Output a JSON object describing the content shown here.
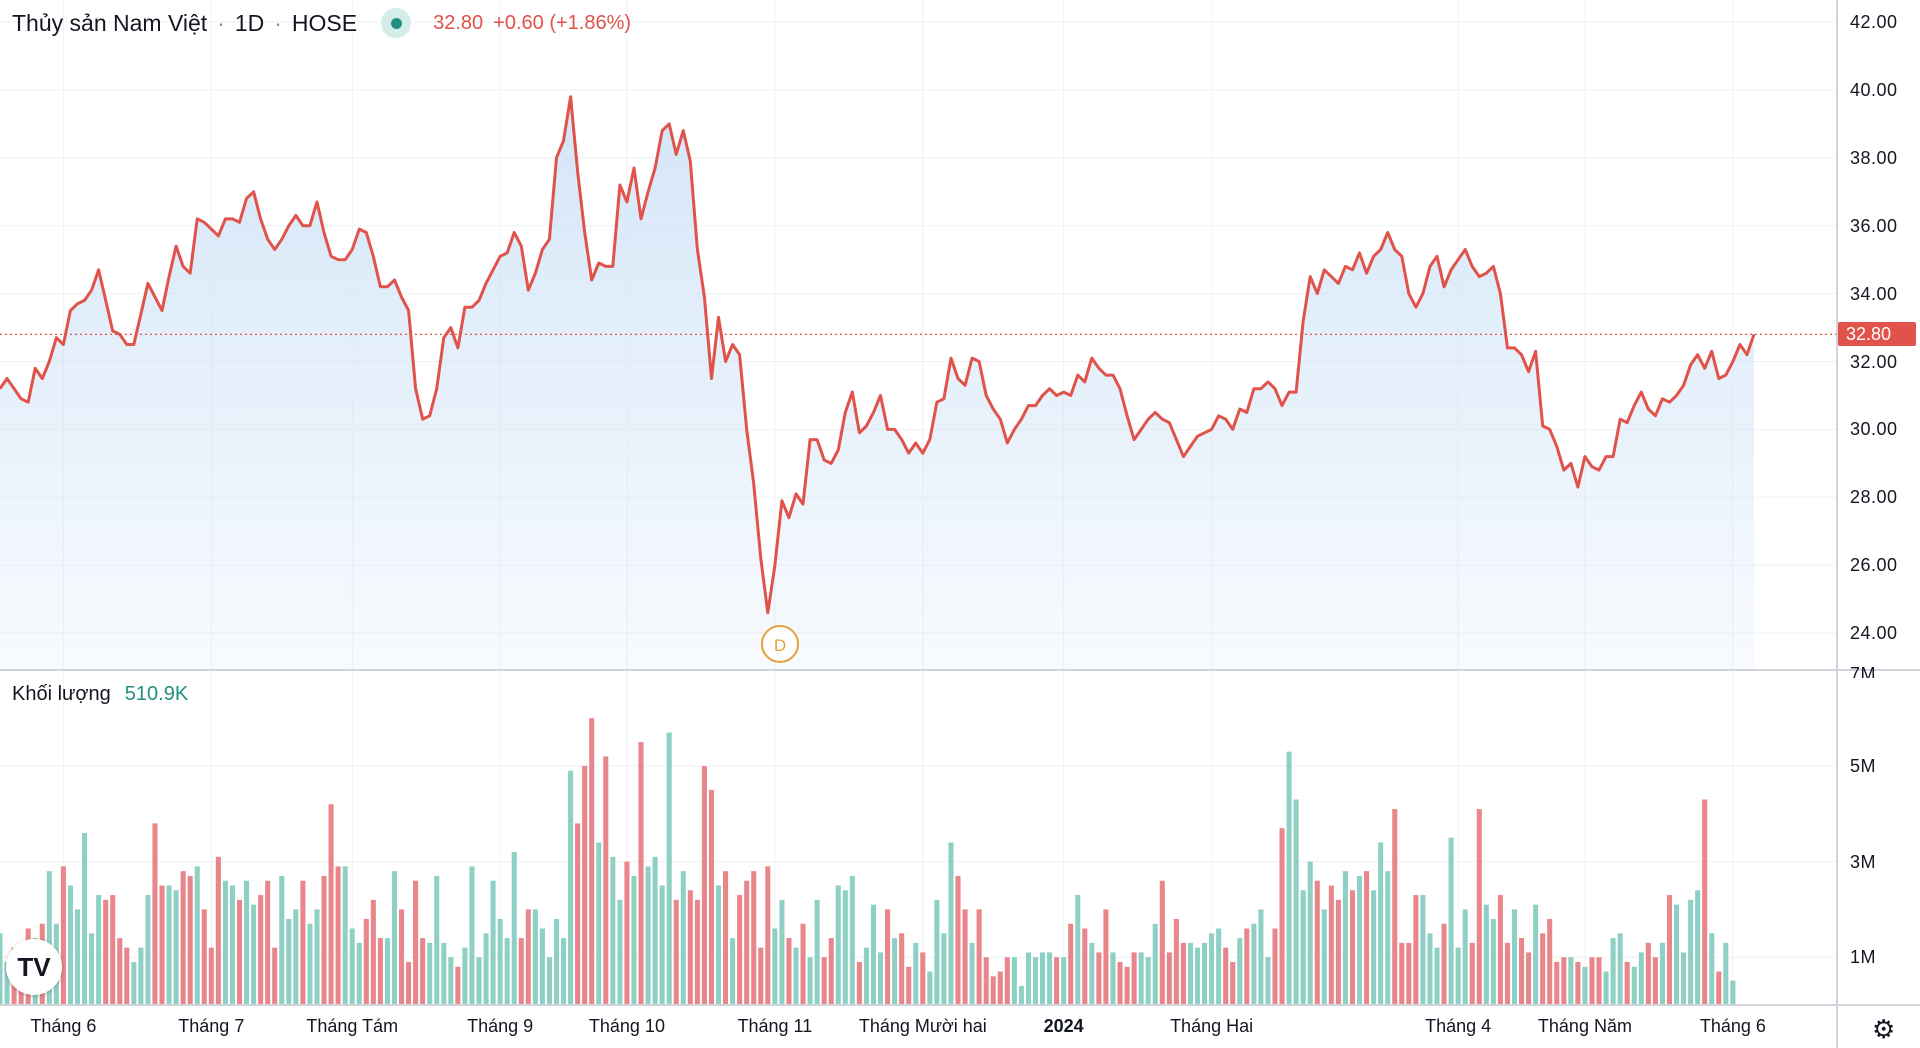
{
  "header": {
    "symbol_name": "Thủy sản Nam Việt",
    "interval": "1D",
    "exchange": "HOSE",
    "price": "32.80",
    "change": "+0.60 (+1.86%)",
    "sep": "·"
  },
  "volume_legend": {
    "label": "Khối lượng",
    "value": "510.9K"
  },
  "last_price_badge": "32.80",
  "event_marker": "D",
  "logo_text": "TV",
  "colors": {
    "line": "#e0524a",
    "up_volume": "#8fd0c4",
    "down_volume": "#e8868b",
    "area": "#cfe3f7"
  },
  "chart_data": {
    "type": "line",
    "title": "Thủy sản Nam Việt · 1D · HOSE",
    "ylim": [
      23,
      42.2
    ],
    "y_ticks": [
      "42.00",
      "40.00",
      "38.00",
      "36.00",
      "34.00",
      "32.00",
      "30.00",
      "28.00",
      "26.00",
      "24.00"
    ],
    "y_tick_values": [
      42,
      40,
      38,
      36,
      34,
      32,
      30,
      28,
      26,
      24
    ],
    "volume_ticks": [
      "7M",
      "5M",
      "3M",
      "1M"
    ],
    "volume_tick_values": [
      7,
      5,
      3,
      1
    ],
    "x_labels": [
      {
        "label": "Tháng 6",
        "bar": 9
      },
      {
        "label": "Tháng 7",
        "bar": 30
      },
      {
        "label": "Tháng Tám",
        "bar": 50
      },
      {
        "label": "Tháng 9",
        "bar": 71
      },
      {
        "label": "Tháng 10",
        "bar": 89
      },
      {
        "label": "Tháng 11",
        "bar": 110
      },
      {
        "label": "Tháng Mười hai",
        "bar": 131
      },
      {
        "label": "2024",
        "bar": 151,
        "bold": true
      },
      {
        "label": "Tháng Hai",
        "bar": 172
      },
      {
        "label": "Tháng 4",
        "bar": 207
      },
      {
        "label": "Tháng Năm",
        "bar": 225
      },
      {
        "label": "Tháng 6",
        "bar": 246
      }
    ],
    "close": [
      31.2,
      31.5,
      31.2,
      30.9,
      30.8,
      31.8,
      31.5,
      32.0,
      32.7,
      32.5,
      33.5,
      33.7,
      33.8,
      34.1,
      34.7,
      33.8,
      32.9,
      32.8,
      32.5,
      32.5,
      33.4,
      34.3,
      33.9,
      33.5,
      34.5,
      35.4,
      34.8,
      34.6,
      36.2,
      36.1,
      35.9,
      35.7,
      36.2,
      36.2,
      36.1,
      36.8,
      37.0,
      36.2,
      35.6,
      35.3,
      35.6,
      36.0,
      36.3,
      36.0,
      36.0,
      36.7,
      35.8,
      35.1,
      35.0,
      35.0,
      35.3,
      35.9,
      35.8,
      35.1,
      34.2,
      34.2,
      34.4,
      33.9,
      33.5,
      31.2,
      30.3,
      30.4,
      31.2,
      32.7,
      33.0,
      32.4,
      33.6,
      33.6,
      33.8,
      34.3,
      34.7,
      35.1,
      35.2,
      35.8,
      35.4,
      34.1,
      34.6,
      35.3,
      35.6,
      38.0,
      38.5,
      39.8,
      37.6,
      35.8,
      34.4,
      34.9,
      34.8,
      34.8,
      37.2,
      36.7,
      37.7,
      36.2,
      37.0,
      37.7,
      38.8,
      39.0,
      38.1,
      38.8,
      37.9,
      35.3,
      33.9,
      31.5,
      33.3,
      32.0,
      32.5,
      32.2,
      30.0,
      28.4,
      26.2,
      24.6,
      26.0,
      27.9,
      27.4,
      28.1,
      27.8,
      29.7,
      29.7,
      29.1,
      29.0,
      29.4,
      30.5,
      31.1,
      29.9,
      30.1,
      30.5,
      31.0,
      30.0,
      30.0,
      29.7,
      29.3,
      29.6,
      29.3,
      29.7,
      30.8,
      30.9,
      32.1,
      31.5,
      31.3,
      32.1,
      32.0,
      31.0,
      30.6,
      30.3,
      29.6,
      30.0,
      30.3,
      30.7,
      30.7,
      31.0,
      31.2,
      31.0,
      31.1,
      31.0,
      31.6,
      31.4,
      32.1,
      31.8,
      31.6,
      31.6,
      31.2,
      30.4,
      29.7,
      30.0,
      30.3,
      30.5,
      30.3,
      30.2,
      29.7,
      29.2,
      29.5,
      29.8,
      29.9,
      30.0,
      30.4,
      30.3,
      30.0,
      30.6,
      30.5,
      31.2,
      31.2,
      31.4,
      31.2,
      30.7,
      31.1,
      31.1,
      33.2,
      34.5,
      34.0,
      34.7,
      34.5,
      34.3,
      34.8,
      34.7,
      35.2,
      34.6,
      35.1,
      35.3,
      35.8,
      35.3,
      35.1,
      34.0,
      33.6,
      34.0,
      34.8,
      35.1,
      34.2,
      34.7,
      35.0,
      35.3,
      34.8,
      34.5,
      34.6,
      34.8,
      34.0,
      32.4,
      32.4,
      32.2,
      31.7,
      32.3,
      30.1,
      30.0,
      29.5,
      28.8,
      29.0,
      28.3,
      29.2,
      28.9,
      28.8,
      29.2,
      29.2,
      30.3,
      30.2,
      30.7,
      31.1,
      30.6,
      30.4,
      30.9,
      30.8,
      31.0,
      31.3,
      31.9,
      32.2,
      31.8,
      32.3,
      31.5,
      31.6,
      32.0,
      32.5,
      32.2,
      32.8
    ],
    "volume_millions": [
      1.5,
      0.9,
      1.2,
      0.8,
      1.6,
      1.4,
      1.7,
      2.8,
      1.7,
      2.9,
      2.5,
      2.0,
      3.6,
      1.5,
      2.3,
      2.2,
      2.3,
      1.4,
      1.2,
      0.9,
      1.2,
      2.3,
      3.8,
      2.5,
      2.5,
      2.4,
      2.8,
      2.7,
      2.9,
      2.0,
      1.2,
      3.1,
      2.6,
      2.5,
      2.2,
      2.6,
      2.1,
      2.3,
      2.6,
      1.2,
      2.7,
      1.8,
      2.0,
      2.6,
      1.7,
      2.0,
      2.7,
      4.2,
      2.9,
      2.9,
      1.6,
      1.3,
      1.8,
      2.2,
      1.4,
      1.4,
      2.8,
      2.0,
      0.9,
      2.6,
      1.4,
      1.3,
      2.7,
      1.3,
      1.0,
      0.8,
      1.2,
      2.9,
      1.0,
      1.5,
      2.6,
      1.8,
      1.4,
      3.2,
      1.4,
      2.0,
      2.0,
      1.6,
      1.0,
      1.8,
      1.4,
      4.9,
      3.8,
      5.0,
      6.0,
      3.4,
      5.2,
      3.1,
      2.2,
      3.0,
      2.7,
      5.5,
      2.9,
      3.1,
      2.5,
      5.7,
      2.2,
      2.8,
      2.4,
      2.2,
      5.0,
      4.5,
      2.5,
      2.8,
      1.4,
      2.3,
      2.6,
      2.8,
      1.2,
      2.9,
      1.6,
      2.2,
      1.4,
      1.2,
      1.7,
      1.0,
      2.2,
      1.0,
      1.4,
      2.5,
      2.4,
      2.7,
      0.9,
      1.2,
      2.1,
      1.1,
      2.0,
      1.4,
      1.5,
      0.8,
      1.3,
      1.1,
      0.7,
      2.2,
      1.5,
      3.4,
      2.7,
      2.0,
      1.3,
      2.0,
      1.0,
      0.6,
      0.7,
      1.0,
      1.0,
      0.4,
      1.1,
      1.0,
      1.1,
      1.1,
      1.0,
      1.0,
      1.7,
      2.3,
      1.6,
      1.3,
      1.1,
      2.0,
      1.1,
      0.9,
      0.8,
      1.1,
      1.1,
      1.0,
      1.7,
      2.6,
      1.1,
      1.8,
      1.3,
      1.3,
      1.2,
      1.3,
      1.5,
      1.6,
      1.2,
      0.9,
      1.4,
      1.6,
      1.7,
      2.0,
      1.0,
      1.6,
      3.7,
      5.3,
      4.3,
      2.4,
      3.0,
      2.6,
      2.0,
      2.5,
      2.2,
      2.8,
      2.4,
      2.7,
      2.8,
      2.4,
      3.4,
      2.8,
      4.1,
      1.3,
      1.3,
      2.3,
      2.3,
      1.5,
      1.2,
      1.7,
      3.5,
      1.2,
      2.0,
      1.3,
      4.1,
      2.1,
      1.8,
      2.3,
      1.3,
      2.0,
      1.4,
      1.1,
      2.1,
      1.5,
      1.8,
      0.9,
      1.0,
      1.0,
      0.9,
      0.8,
      1.0,
      1.0,
      0.7,
      1.4,
      1.5,
      0.9,
      0.8,
      1.1,
      1.3,
      1.0,
      1.3,
      2.3,
      2.1,
      1.1,
      2.2,
      2.4,
      4.3,
      1.5,
      0.7,
      1.3,
      0.51
    ],
    "last_price": 32.8,
    "event_bar": 109
  }
}
